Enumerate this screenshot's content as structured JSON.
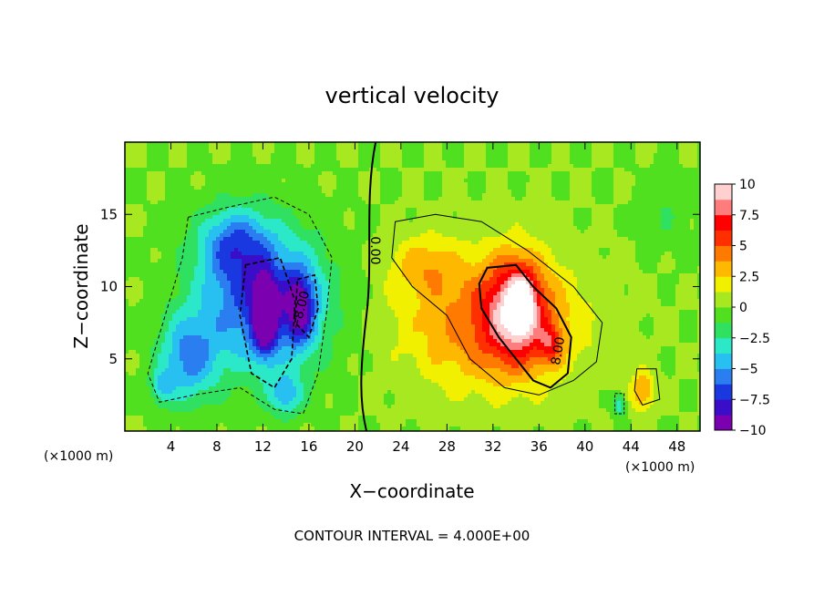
{
  "chart_data": {
    "type": "heatmap",
    "title": "vertical velocity",
    "xlabel": "X−coordinate",
    "ylabel": "Z−coordinate",
    "x_unit_left": "(×1000 m)",
    "x_unit_right": "(×1000 m)",
    "xlim": [
      0,
      50
    ],
    "ylim": [
      0,
      20
    ],
    "x_ticks": [
      4,
      8,
      12,
      16,
      20,
      24,
      28,
      32,
      36,
      40,
      44,
      48
    ],
    "y_ticks": [
      5,
      10,
      15
    ],
    "colorbar": {
      "min": -10,
      "max": 10,
      "ticks": [
        "10",
        "7.5",
        "5",
        "2.5",
        "0",
        "−2.5",
        "−5",
        "−7.5",
        "−10"
      ],
      "tick_values": [
        10,
        7.5,
        5,
        2.5,
        0,
        -2.5,
        -5,
        -7.5,
        -10
      ],
      "colors": [
        "#7a00b0",
        "#3a0ec8",
        "#1a38e0",
        "#2a7ef0",
        "#28c0f0",
        "#2ae8c8",
        "#30e060",
        "#50e020",
        "#a8e820",
        "#f0f000",
        "#ffb800",
        "#ff7a00",
        "#ff3000",
        "#ff0000",
        "#ff7c7c",
        "#ffd0d0"
      ]
    },
    "contour_labels": [
      "0.00",
      "−8.00",
      "8.00"
    ],
    "footer": "CONTOUR INTERVAL = 4.000E+00",
    "blobs": [
      {
        "x": 12.0,
        "z": 9.0,
        "sx": 5.5,
        "sz": 4.8,
        "a": -7.0
      },
      {
        "x": 5.5,
        "z": 5.0,
        "sx": 2.5,
        "sz": 3.0,
        "a": -5.0
      },
      {
        "x": 9.5,
        "z": 13.0,
        "sx": 3.0,
        "sz": 2.5,
        "a": -4.5
      },
      {
        "x": 12.2,
        "z": 8.0,
        "sx": 1.0,
        "sz": 2.4,
        "a": -9.0
      },
      {
        "x": 15.2,
        "z": 8.5,
        "sx": 1.3,
        "sz": 2.5,
        "a": -6.0
      },
      {
        "x": 14.0,
        "z": 2.5,
        "sx": 1.5,
        "sz": 1.4,
        "a": -4.0
      },
      {
        "x": 3.2,
        "z": 3.0,
        "sx": 1.0,
        "sz": 1.2,
        "a": -3.0
      },
      {
        "x": 32.0,
        "z": 7.5,
        "sx": 7.5,
        "sz": 4.5,
        "a": 5.0
      },
      {
        "x": 26.0,
        "z": 11.5,
        "sx": 3.0,
        "sz": 2.0,
        "a": 2.5
      },
      {
        "x": 34.0,
        "z": 8.5,
        "sx": 2.5,
        "sz": 3.5,
        "a": 6.5
      },
      {
        "x": 34.5,
        "z": 8.8,
        "sx": 1.0,
        "sz": 1.8,
        "a": 5.0
      },
      {
        "x": 37.0,
        "z": 6.0,
        "sx": 1.0,
        "sz": 1.3,
        "a": 4.0
      },
      {
        "x": 45.0,
        "z": 2.8,
        "sx": 1.0,
        "sz": 1.4,
        "a": 4.0
      },
      {
        "x": 43.0,
        "z": 1.8,
        "sx": 0.5,
        "sz": 0.8,
        "a": -3.5
      },
      {
        "x": 47.0,
        "z": 15.0,
        "sx": 2.0,
        "sz": 2.5,
        "a": -1.2
      }
    ]
  }
}
